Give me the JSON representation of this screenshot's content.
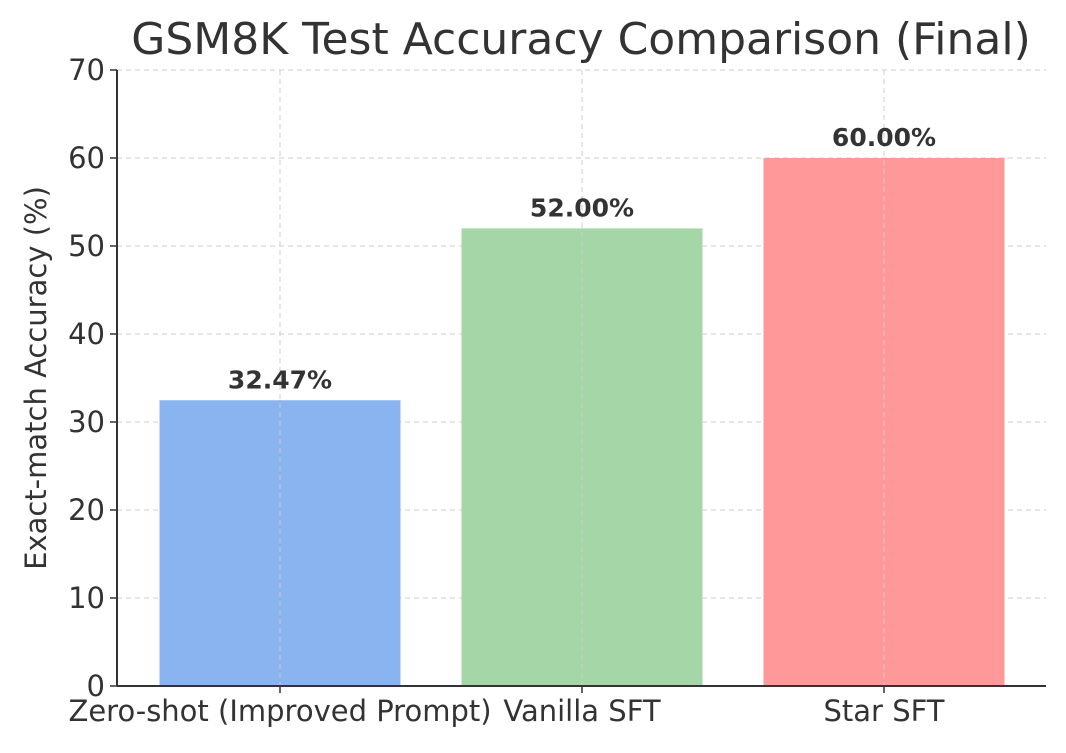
{
  "chart_data": {
    "type": "bar",
    "title": "GSM8K Test Accuracy Comparison (Final)",
    "xlabel": "",
    "ylabel": "Exact-match Accuracy (%)",
    "categories": [
      "Zero-shot (Improved Prompt)",
      "Vanilla SFT",
      "Star SFT"
    ],
    "values": [
      32.47,
      52.0,
      60.0
    ],
    "value_labels": [
      "32.47%",
      "52.00%",
      "60.00%"
    ],
    "colors": [
      "#89b4ef",
      "#a5d6a7",
      "#ff9999"
    ],
    "ylim": [
      0,
      70
    ],
    "yticks": [
      0,
      10,
      20,
      30,
      40,
      50,
      60,
      70
    ],
    "grid": true
  }
}
